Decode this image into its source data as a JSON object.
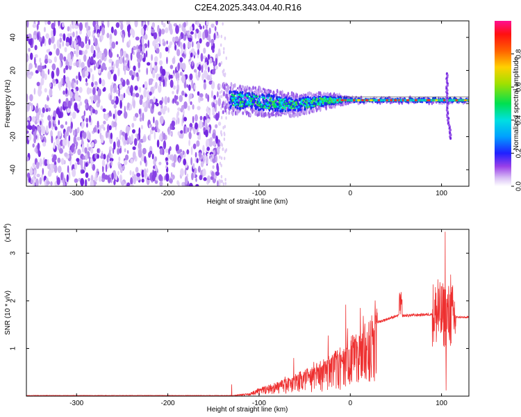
{
  "title": "C2E4.2025.343.04.40.R16",
  "chart_data": [
    {
      "type": "heatmap",
      "xlabel": "Height of straight line (km)",
      "ylabel": "Frequency (Hz)",
      "xlim": [
        -355,
        130
      ],
      "ylim": [
        -50,
        50
      ],
      "x_ticks": [
        -300,
        -200,
        -100,
        0,
        100
      ],
      "x_tick_labels": [
        "-300",
        "-200",
        "-100",
        "0",
        "100"
      ],
      "y_ticks": [
        -40,
        -20,
        0,
        20,
        40
      ],
      "y_tick_labels": [
        "-40",
        "-20",
        "0",
        "20",
        "40"
      ],
      "colorbar": {
        "label": "Normalized spectral amplitude",
        "range": [
          0,
          1
        ],
        "ticks": [
          0.0,
          0.2,
          0.4,
          0.6,
          0.8
        ],
        "tick_labels": [
          "0.0",
          "0.2",
          "0.4",
          "0.6",
          "0.8"
        ],
        "colors": [
          "#ffffff",
          "#c8a8f0",
          "#7a20e0",
          "#2020ff",
          "#00c8ff",
          "#00e060",
          "#c0e000",
          "#ff8000",
          "#ff2020",
          "#ff1080"
        ]
      },
      "noise_region_x": [
        -355,
        -143
      ],
      "signal_track": [
        {
          "x": -140,
          "f": 3,
          "spread": 10
        },
        {
          "x": -120,
          "f": 2,
          "spread": 9
        },
        {
          "x": -100,
          "f": 1,
          "spread": 9
        },
        {
          "x": -80,
          "f": 0,
          "spread": 8
        },
        {
          "x": -60,
          "f": -1,
          "spread": 7
        },
        {
          "x": -40,
          "f": 1,
          "spread": 6
        },
        {
          "x": -20,
          "f": 2,
          "spread": 4
        },
        {
          "x": 0,
          "f": 2,
          "spread": 2
        },
        {
          "x": 20,
          "f": 2,
          "spread": 1.5
        },
        {
          "x": 50,
          "f": 2,
          "spread": 1.5
        },
        {
          "x": 80,
          "f": 2,
          "spread": 1.5
        },
        {
          "x": 100,
          "f": 2,
          "spread": 2
        },
        {
          "x": 130,
          "f": 2,
          "spread": 1.5
        }
      ],
      "spike_x": 106
    },
    {
      "type": "line",
      "xlabel": "Height of straight line (km)",
      "ylabel": "SNR (10 * v/v)",
      "y_scale_label": "(x10",
      "y_scale_exp": "4",
      "xlim": [
        -355,
        130
      ],
      "ylim": [
        0,
        3.5
      ],
      "x_ticks": [
        -300,
        -200,
        -100,
        0,
        100
      ],
      "x_tick_labels": [
        "-300",
        "-200",
        "-100",
        "0",
        "100"
      ],
      "y_ticks": [
        1,
        2,
        3
      ],
      "y_tick_labels": [
        "1",
        "2",
        "3"
      ],
      "color": "#ee3030",
      "envelope": [
        {
          "x": -355,
          "y": 0.01
        },
        {
          "x": -130,
          "y": 0.01
        },
        {
          "x": -110,
          "y": 0.06
        },
        {
          "x": -100,
          "y": 0.15
        },
        {
          "x": -80,
          "y": 0.25
        },
        {
          "x": -60,
          "y": 0.4
        },
        {
          "x": -40,
          "y": 0.55
        },
        {
          "x": -20,
          "y": 0.75
        },
        {
          "x": -5,
          "y": 0.95
        },
        {
          "x": 10,
          "y": 1.2
        },
        {
          "x": 30,
          "y": 1.55
        },
        {
          "x": 50,
          "y": 1.68
        },
        {
          "x": 70,
          "y": 1.7
        },
        {
          "x": 90,
          "y": 1.72
        },
        {
          "x": 100,
          "y": 1.7
        },
        {
          "x": 115,
          "y": 1.66
        },
        {
          "x": 130,
          "y": 1.65
        }
      ],
      "peaks": [
        {
          "x": -5,
          "y": 1.92
        },
        {
          "x": 11,
          "y": 1.85
        },
        {
          "x": 55,
          "y": 2.28
        },
        {
          "x": 96,
          "y": 2.45
        },
        {
          "x": 104,
          "y": 3.45
        },
        {
          "x": 110,
          "y": 2.55
        }
      ],
      "dips": [
        {
          "x": 105,
          "y": 0.12
        }
      ]
    }
  ]
}
